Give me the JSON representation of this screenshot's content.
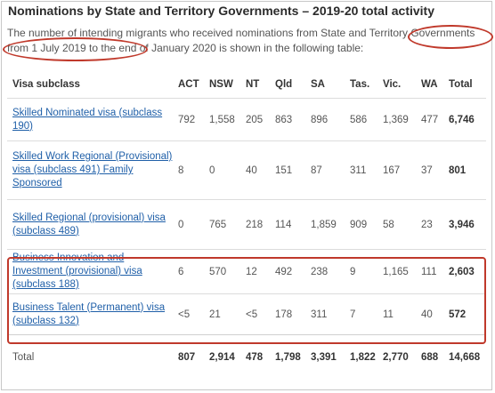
{
  "title": "Nominations by State and Territory Governments – 2019-20 total activity",
  "intro": "The number of intending migrants who received nominations from State and Territory Governments from 1 July 2019 to the end of January 2020 is shown in the following table:",
  "table": {
    "headers": [
      "Visa subclass",
      "ACT",
      "NSW",
      "NT",
      "Qld",
      "SA",
      "Tas.",
      "Vic.",
      "WA",
      "Total"
    ],
    "rows": [
      {
        "label": "Skilled Nominated visa (subclass 190)",
        "values": [
          "792",
          "1,558",
          "205",
          "863",
          "896",
          "586",
          "1,369",
          "477",
          "6,746"
        ]
      },
      {
        "label": "Skilled Work Regional (Provisional) visa (subclass 491) Family Sponsored",
        "values": [
          "8",
          "0",
          "40",
          "151",
          "87",
          "311",
          "167",
          "37",
          "801"
        ]
      },
      {
        "label": "Skilled Regional (provisional) visa (subclass 489)",
        "values": [
          "0",
          "765",
          "218",
          "114",
          "1,859",
          "909",
          "58",
          "23",
          "3,946"
        ]
      },
      {
        "label": "Business Innovation and Investment (provisional) visa (subclass 188)",
        "values": [
          "6",
          "570",
          "12",
          "492",
          "238",
          "9",
          "1,165",
          "111",
          "2,603"
        ]
      },
      {
        "label": "Business Talent (Permanent) visa (subclass 132)",
        "values": [
          "<5",
          "21",
          "<5",
          "178",
          "311",
          "7",
          "11",
          "40",
          "572"
        ]
      }
    ],
    "total_row": {
      "label": "Total",
      "values": [
        "807",
        "2,914",
        "478",
        "1,798",
        "3,391",
        "1,822",
        "2,770",
        "688",
        "14,668"
      ]
    }
  },
  "annotation_color": "#c0392b",
  "link_color": "#1f5fa8"
}
